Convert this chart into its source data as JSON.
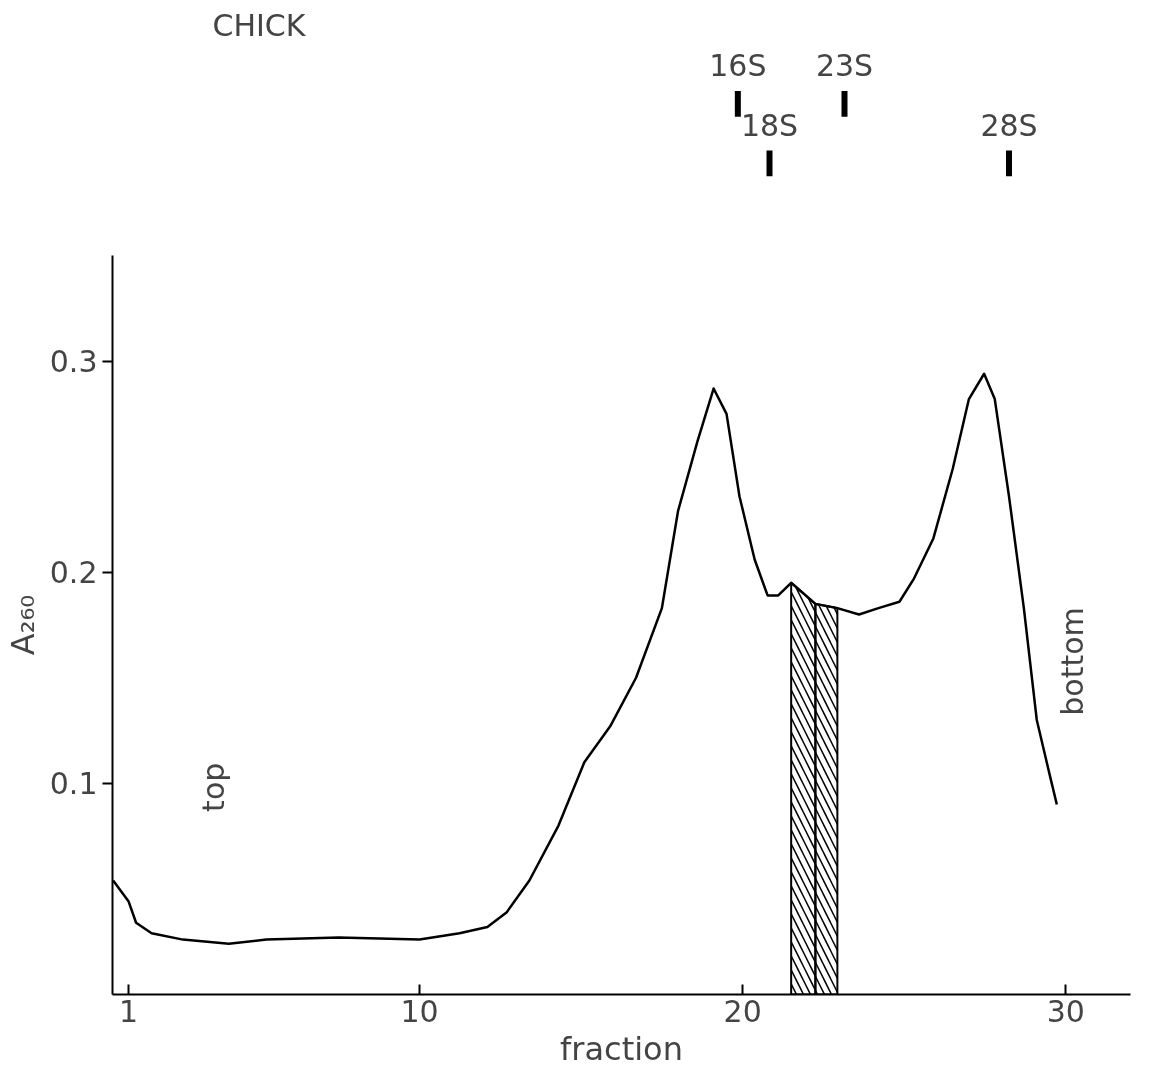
{
  "chart_data": {
    "type": "line",
    "title": "CHICK",
    "xlabel": "fraction",
    "ylabel": "A₂₆₀",
    "x": [
      0.52,
      1,
      1.23,
      1.71,
      2.68,
      4.1,
      5.26,
      7.5,
      10,
      11.24,
      12.1,
      12.7,
      13.4,
      14.3,
      15.1,
      15.9,
      16.7,
      17.5,
      18.0,
      18.6,
      19.1,
      19.5,
      19.9,
      20.37,
      20.77,
      21.1,
      21.5,
      22.25,
      22.93,
      23.6,
      24.2,
      24.85,
      25.3,
      25.9,
      26.5,
      27.0,
      27.47,
      27.8,
      28.24,
      28.7,
      29.1,
      29.5,
      29.72
    ],
    "series": [
      {
        "color": "#000000",
        "values": [
          0.054,
          0.044,
          0.034,
          0.029,
          0.026,
          0.024,
          0.026,
          0.027,
          0.026,
          0.029,
          0.032,
          0.039,
          0.054,
          0.08,
          0.11,
          0.127,
          0.15,
          0.183,
          0.229,
          0.262,
          0.287,
          0.275,
          0.236,
          0.206,
          0.189,
          0.189,
          0.195,
          0.185,
          0.183,
          0.18,
          0.183,
          0.186,
          0.197,
          0.216,
          0.249,
          0.282,
          0.294,
          0.282,
          0.236,
          0.183,
          0.13,
          0.104,
          0.09
        ]
      }
    ],
    "xlim": [
      0.5,
      32
    ],
    "ylim": [
      0,
      0.35
    ],
    "xticks": [
      1,
      10,
      20,
      30
    ],
    "yticks": [
      0.1,
      0.2,
      0.3
    ],
    "grid": false,
    "marker": "none",
    "line_style": "solid",
    "bands": [
      {
        "axis": "x",
        "from": 21.5,
        "to": 22.25,
        "color": "#000000"
      },
      {
        "axis": "x",
        "from": 22.25,
        "to": 22.93,
        "color": "#000000"
      }
    ],
    "ref_lines": [
      {
        "axis": "x",
        "value": 19.85,
        "label": "16S"
      },
      {
        "axis": "x",
        "value": 20.83,
        "label": "18S"
      },
      {
        "axis": "x",
        "value": 23.15,
        "label": "23S"
      },
      {
        "axis": "x",
        "value": 28.24,
        "label": "28S"
      }
    ],
    "annotations": [
      "top",
      "bottom"
    ]
  }
}
